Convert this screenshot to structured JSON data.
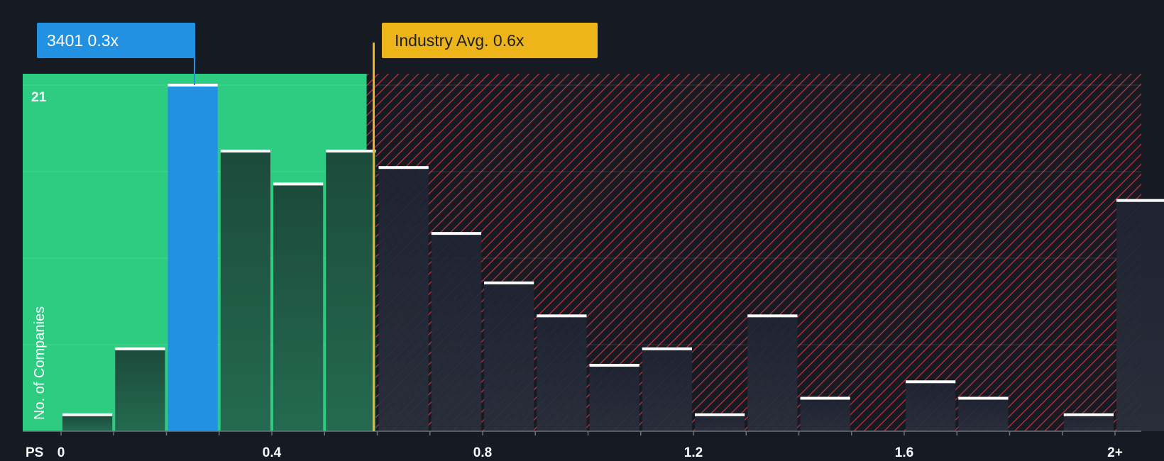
{
  "chart_data": {
    "type": "bar",
    "xlabel": "PS",
    "ylabel": "No. of Companies",
    "ytick_label": "21",
    "ylim": [
      0,
      21
    ],
    "x_ticks": [
      {
        "value": 0,
        "label": "0"
      },
      {
        "value": 0.4,
        "label": "0.4"
      },
      {
        "value": 0.8,
        "label": "0.8"
      },
      {
        "value": 1.2,
        "label": "1.2"
      },
      {
        "value": 1.6,
        "label": "1.6"
      },
      {
        "value": 2.0,
        "label": "2+"
      }
    ],
    "bins": [
      {
        "start": 0.0,
        "value": 1
      },
      {
        "start": 0.1,
        "value": 5
      },
      {
        "start": 0.2,
        "value": 21,
        "highlight": true
      },
      {
        "start": 0.3,
        "value": 17
      },
      {
        "start": 0.4,
        "value": 15
      },
      {
        "start": 0.5,
        "value": 17
      },
      {
        "start": 0.6,
        "value": 16
      },
      {
        "start": 0.7,
        "value": 12
      },
      {
        "start": 0.8,
        "value": 9
      },
      {
        "start": 0.9,
        "value": 7
      },
      {
        "start": 1.0,
        "value": 4
      },
      {
        "start": 1.1,
        "value": 5
      },
      {
        "start": 1.2,
        "value": 1
      },
      {
        "start": 1.3,
        "value": 7
      },
      {
        "start": 1.4,
        "value": 2
      },
      {
        "start": 1.5,
        "value": 0
      },
      {
        "start": 1.6,
        "value": 3
      },
      {
        "start": 1.7,
        "value": 2
      },
      {
        "start": 1.8,
        "value": 0
      },
      {
        "start": 1.9,
        "value": 1
      },
      {
        "start": 2.0,
        "value": 14
      }
    ],
    "company": {
      "label": "3401 0.3x",
      "value": 0.3
    },
    "industry_avg": {
      "label": "Industry Avg. 0.6x",
      "value": 0.6
    },
    "fair_zone_end": 0.58,
    "colors": {
      "background": "#151a23",
      "green_zone": "#2ecc80",
      "highlight_bar": "#2391e2",
      "company_callout": "#2391e2",
      "industry_callout": "#eeb51a",
      "red_hatch": "#c8343e",
      "bar_cap": "#ffffff"
    }
  }
}
